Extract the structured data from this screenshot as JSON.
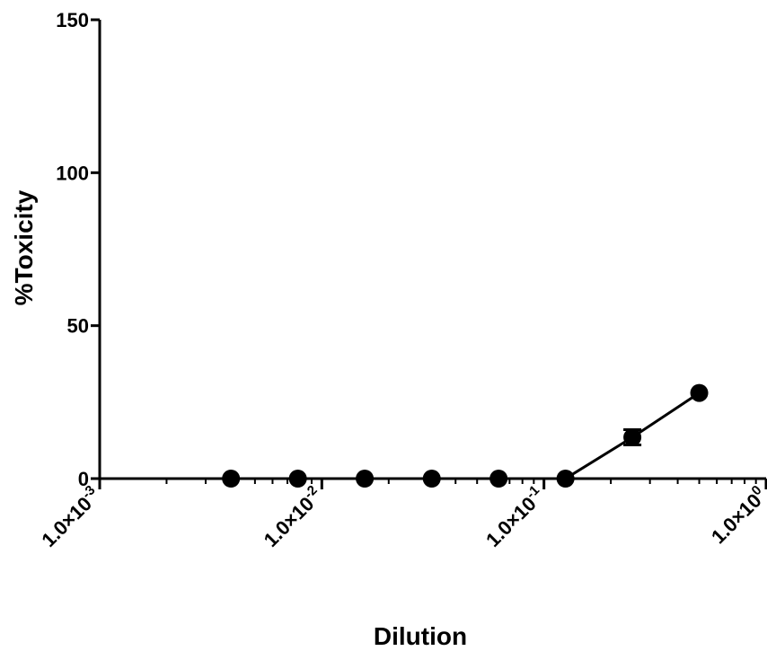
{
  "chart_data": {
    "type": "scatter",
    "title": "",
    "xlabel": "Dilution",
    "ylabel": "%Toxicity",
    "x_scale": "log",
    "xlim": [
      0.001,
      1.0
    ],
    "ylim": [
      0,
      150
    ],
    "y_ticks": [
      0,
      50,
      100,
      150
    ],
    "y_tick_labels": [
      "0",
      "50",
      "100",
      "150"
    ],
    "x_ticks": [
      0.001,
      0.01,
      0.1,
      1.0
    ],
    "x_tick_labels": [
      {
        "base": "1.0×10",
        "exp": "-3"
      },
      {
        "base": "1.0×10",
        "exp": "-2"
      },
      {
        "base": "1.0×10",
        "exp": "-1"
      },
      {
        "base": "1.0×10",
        "exp": "0"
      }
    ],
    "grid": false,
    "legend": "none",
    "color": "#000000",
    "series": [
      {
        "x": [
          0.0039,
          0.0078,
          0.0156,
          0.03125,
          0.0625,
          0.125,
          0.25,
          0.5
        ],
        "y": [
          0,
          0,
          0,
          0,
          0,
          0,
          13.5,
          28
        ],
        "y_err": [
          0,
          0,
          0,
          0,
          0,
          0,
          2.5,
          0
        ]
      }
    ],
    "fit_line": {
      "x": [
        0.125,
        0.25,
        0.5
      ],
      "y": [
        0,
        13.5,
        28
      ]
    }
  }
}
